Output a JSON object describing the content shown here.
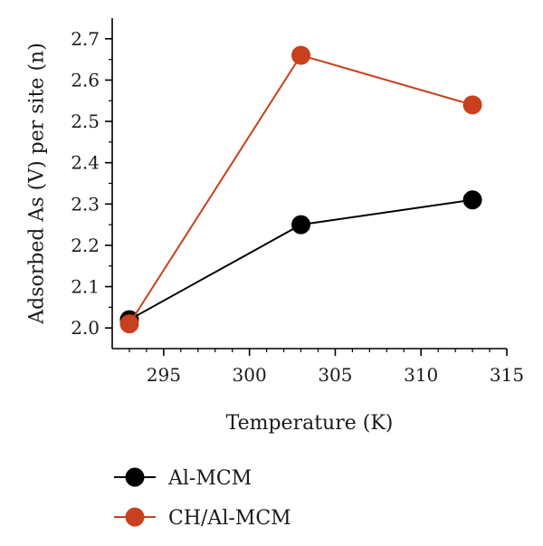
{
  "chart_data": {
    "type": "line",
    "xlabel": "Temperature (K)",
    "ylabel": "Adsorbed As (V) per site (n)",
    "xlim": [
      292,
      315
    ],
    "ylim": [
      1.95,
      2.75
    ],
    "xticks": [
      295,
      300,
      305,
      310,
      315
    ],
    "yticks": [
      2.0,
      2.1,
      2.2,
      2.3,
      2.4,
      2.5,
      2.6,
      2.7
    ],
    "ytick_labels": [
      "2.0",
      "2.1",
      "2.2",
      "2.3",
      "2.4",
      "2.5",
      "2.6",
      "2.7"
    ],
    "grid": false,
    "legend_position": "bottom",
    "series": [
      {
        "name": "Al-MCM",
        "color": "#000000",
        "x": [
          293,
          303,
          313
        ],
        "y": [
          2.02,
          2.25,
          2.31
        ]
      },
      {
        "name": "CH/Al-MCM",
        "color": "#c8401e",
        "x": [
          293,
          303,
          313
        ],
        "y": [
          2.01,
          2.66,
          2.54
        ]
      }
    ]
  }
}
